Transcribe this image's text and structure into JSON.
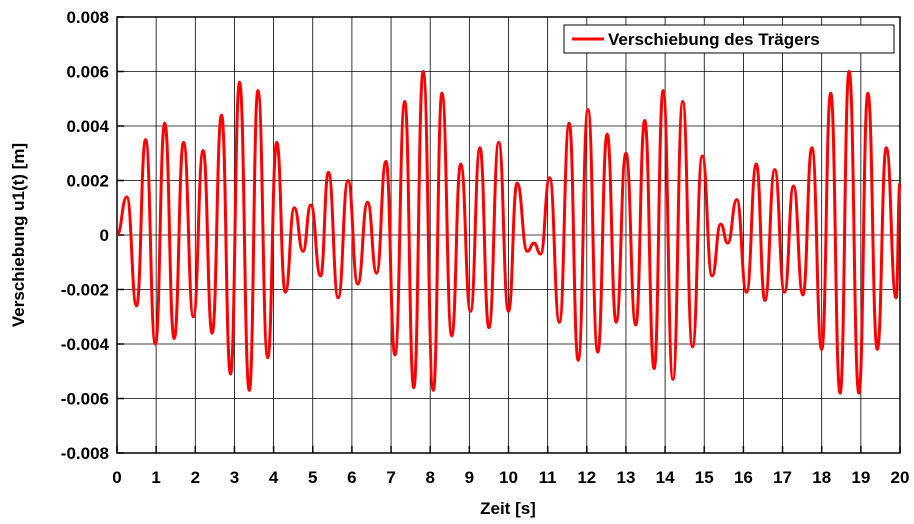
{
  "chart_data": {
    "type": "line",
    "xlabel": "Zeit [s]",
    "ylabel": "Verschiebung  u1(t) [m]",
    "xlim": [
      0,
      20
    ],
    "xticks": [
      0,
      1,
      2,
      3,
      4,
      5,
      6,
      7,
      8,
      9,
      10,
      11,
      12,
      13,
      14,
      15,
      16,
      17,
      18,
      19,
      20
    ],
    "ylim": [
      -0.008,
      0.008
    ],
    "yticks": [
      -0.008,
      -0.006,
      -0.004,
      -0.002,
      0,
      0.002,
      0.004,
      0.006,
      0.008
    ],
    "grid": true,
    "legend": "upper right",
    "x": [
      0,
      0.25,
      0.5,
      0.73,
      0.98,
      1.22,
      1.46,
      1.7,
      1.95,
      2.2,
      2.43,
      2.67,
      2.9,
      3.13,
      3.38,
      3.6,
      3.85,
      4.08,
      4.3,
      4.53,
      4.75,
      4.95,
      5.2,
      5.4,
      5.65,
      5.9,
      6.15,
      6.4,
      6.63,
      6.87,
      7.1,
      7.35,
      7.58,
      7.82,
      8.08,
      8.3,
      8.55,
      8.78,
      9.03,
      9.27,
      9.5,
      9.75,
      10.0,
      10.22,
      10.48,
      10.65,
      10.82,
      11.05,
      11.3,
      11.55,
      11.78,
      12.03,
      12.28,
      12.52,
      12.75,
      13.0,
      13.25,
      13.48,
      13.72,
      13.95,
      14.2,
      14.45,
      14.7,
      14.95,
      15.2,
      15.42,
      15.6,
      15.83,
      16.08,
      16.33,
      16.55,
      16.8,
      17.05,
      17.28,
      17.52,
      17.75,
      18.0,
      18.23,
      18.47,
      18.7,
      18.95,
      19.18,
      19.42,
      19.65,
      19.9,
      20
    ],
    "series": [
      {
        "name": "Verschiebung des Trägers",
        "color": "#ff0000",
        "values": [
          0,
          0.0014,
          -0.0026,
          0.0035,
          -0.004,
          0.0041,
          -0.0038,
          0.0034,
          -0.003,
          0.0031,
          -0.0036,
          0.0044,
          -0.0051,
          0.0056,
          -0.0057,
          0.0053,
          -0.0045,
          0.0034,
          -0.0021,
          0.001,
          -0.0006,
          0.0011,
          -0.0015,
          0.0023,
          -0.0023,
          0.002,
          -0.0018,
          0.0012,
          -0.0014,
          0.0027,
          -0.0044,
          0.0049,
          -0.0056,
          0.006,
          -0.0057,
          0.0052,
          -0.0037,
          0.0026,
          -0.0028,
          0.0032,
          -0.0034,
          0.0034,
          -0.0028,
          0.0019,
          -0.0006,
          -0.0003,
          -0.0007,
          0.0021,
          -0.0032,
          0.0041,
          -0.0046,
          0.0046,
          -0.0043,
          0.0037,
          -0.0032,
          0.003,
          -0.0033,
          0.0042,
          -0.0049,
          0.0053,
          -0.0053,
          0.0049,
          -0.0041,
          0.0029,
          -0.0015,
          0.0004,
          -0.0003,
          0.0013,
          -0.0021,
          0.0026,
          -0.0024,
          0.0024,
          -0.0021,
          0.0018,
          -0.0022,
          0.0032,
          -0.0042,
          0.0052,
          -0.0058,
          0.006,
          -0.0058,
          0.0052,
          -0.0042,
          0.0032,
          -0.0023,
          0.0019
        ]
      }
    ]
  }
}
